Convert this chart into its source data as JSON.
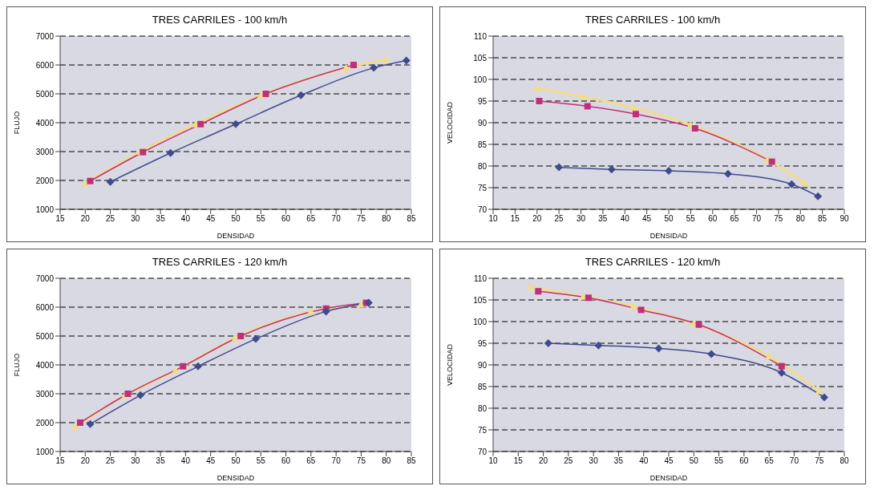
{
  "chart_data": [
    {
      "type": "line",
      "title": "TRES CARRILES - 100 km/h",
      "xlabel": "DENSIDAD",
      "ylabel": "FLUJO",
      "xlim": [
        15,
        85
      ],
      "xticks": [
        15,
        20,
        25,
        30,
        35,
        40,
        45,
        50,
        55,
        60,
        65,
        70,
        75,
        80,
        85
      ],
      "ylim": [
        1000,
        7000
      ],
      "yticks": [
        1000,
        2000,
        3000,
        4000,
        5000,
        6000,
        7000
      ],
      "grid": "y",
      "series": [
        {
          "color": "#f0dc8c",
          "marker": "triangle",
          "x": [
            20,
            31,
            42,
            55,
            72,
            80
          ],
          "values": [
            1900,
            3000,
            3950,
            4950,
            5900,
            6200
          ]
        },
        {
          "color": "#c0307a",
          "marker": "square",
          "x": [
            21,
            31.5,
            43,
            56,
            73.5
          ],
          "values": [
            1980,
            2980,
            3950,
            5000,
            6000
          ]
        },
        {
          "color": "#3f4a8f",
          "marker": "diamond",
          "x": [
            25,
            37,
            50,
            63,
            77.5,
            84
          ],
          "values": [
            1950,
            2950,
            3950,
            4950,
            5900,
            6150
          ]
        }
      ]
    },
    {
      "type": "line",
      "title": "TRES CARRILES - 100 km/h",
      "xlabel": "DENSIDAD",
      "ylabel": "VELOCIDAD",
      "xlim": [
        10,
        90
      ],
      "xticks": [
        10,
        15,
        20,
        25,
        30,
        35,
        40,
        45,
        50,
        55,
        60,
        65,
        70,
        75,
        80,
        85,
        90
      ],
      "ylim": [
        70,
        110
      ],
      "yticks": [
        70,
        75,
        80,
        85,
        90,
        95,
        100,
        105,
        110
      ],
      "grid": "y",
      "series": [
        {
          "color": "#f0dc8c",
          "marker": "triangle",
          "x": [
            20,
            30.5,
            42,
            55,
            72.5,
            81
          ],
          "values": [
            98,
            96,
            93.5,
            89.5,
            81.5,
            76
          ]
        },
        {
          "color": "#c0307a",
          "marker": "square",
          "x": [
            20.5,
            31.5,
            42.5,
            56,
            73.5
          ],
          "values": [
            95,
            93.8,
            92,
            88.7,
            81
          ]
        },
        {
          "color": "#3f4a8f",
          "marker": "diamond",
          "x": [
            25,
            37,
            50,
            63.5,
            78,
            84
          ],
          "values": [
            79.7,
            79.2,
            78.9,
            78.2,
            75.8,
            73
          ]
        }
      ]
    },
    {
      "type": "line",
      "title": "TRES CARRILES - 120 km/h",
      "xlabel": "DENSIDAD",
      "ylabel": "FLUJO",
      "xlim": [
        15,
        85
      ],
      "xticks": [
        15,
        20,
        25,
        30,
        35,
        40,
        45,
        50,
        55,
        60,
        65,
        70,
        75,
        80,
        85
      ],
      "ylim": [
        1000,
        7000
      ],
      "yticks": [
        1000,
        2000,
        3000,
        4000,
        5000,
        6000,
        7000
      ],
      "grid": "y",
      "series": [
        {
          "color": "#f0dc8c",
          "marker": "triangle",
          "x": [
            18,
            28,
            38,
            50,
            65,
            75
          ],
          "values": [
            1850,
            2950,
            3800,
            4950,
            5850,
            6100
          ]
        },
        {
          "color": "#c0307a",
          "marker": "square",
          "x": [
            19,
            28.5,
            39.5,
            51,
            68,
            76
          ],
          "values": [
            2000,
            3000,
            3950,
            5000,
            5950,
            6150
          ]
        },
        {
          "color": "#3f4a8f",
          "marker": "diamond",
          "x": [
            21,
            31,
            42.5,
            54,
            68,
            76.5
          ],
          "values": [
            1950,
            2950,
            3950,
            4900,
            5850,
            6150
          ]
        }
      ]
    },
    {
      "type": "line",
      "title": "TRES CARRILES - 120 km/h",
      "xlabel": "DENSIDAD",
      "ylabel": "VELOCIDAD",
      "xlim": [
        10,
        80
      ],
      "xticks": [
        10,
        15,
        20,
        25,
        30,
        35,
        40,
        45,
        50,
        55,
        60,
        65,
        70,
        75,
        80
      ],
      "ylim": [
        70,
        110
      ],
      "yticks": [
        70,
        75,
        80,
        85,
        90,
        95,
        100,
        105,
        110
      ],
      "grid": "y",
      "series": [
        {
          "color": "#f0dc8c",
          "marker": "triangle",
          "x": [
            17.5,
            28,
            38,
            50,
            65,
            75
          ],
          "values": [
            108,
            105.8,
            103.5,
            99.5,
            92,
            84
          ]
        },
        {
          "color": "#c0307a",
          "marker": "square",
          "x": [
            19,
            29,
            39.5,
            51,
            67.5
          ],
          "values": [
            107,
            105.5,
            102.7,
            99.3,
            89.7
          ]
        },
        {
          "color": "#3f4a8f",
          "marker": "diamond",
          "x": [
            21,
            31,
            43,
            53.5,
            67.5,
            76
          ],
          "values": [
            95,
            94.5,
            93.8,
            92.5,
            88.2,
            82.5
          ]
        }
      ]
    }
  ]
}
